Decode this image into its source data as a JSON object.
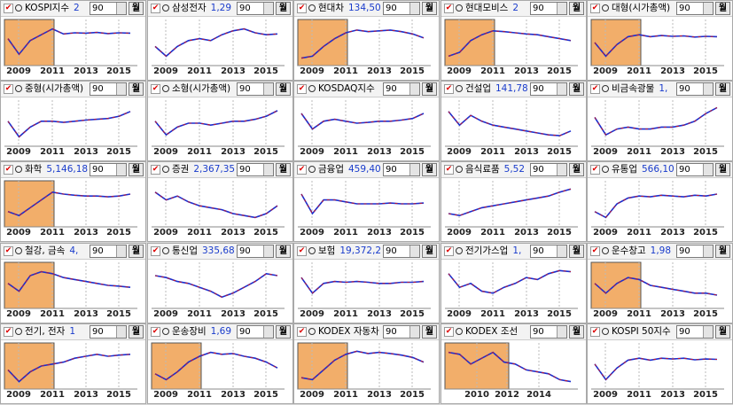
{
  "panels": [
    {
      "name": "KOSPI지수",
      "value": "2",
      "period": "90",
      "button": "월",
      "x_labels": [
        "2009",
        "2011",
        "2013",
        "2015"
      ],
      "highlight": true,
      "values": [
        60,
        20,
        55,
        70,
        85,
        72,
        75,
        74,
        76,
        73,
        75,
        74
      ]
    },
    {
      "name": "삼성전자",
      "value": "1,29",
      "period": "90",
      "button": "월",
      "x_labels": [
        "2009",
        "2011",
        "2013",
        "2015"
      ],
      "highlight": false,
      "values": [
        40,
        15,
        40,
        55,
        60,
        55,
        70,
        80,
        85,
        75,
        70,
        72
      ]
    },
    {
      "name": "현대차",
      "value": "134,50",
      "period": "90",
      "button": "월",
      "x_labels": [
        "2009",
        "2011",
        "2013",
        "2015"
      ],
      "highlight": true,
      "values": [
        10,
        15,
        40,
        60,
        75,
        82,
        78,
        80,
        82,
        78,
        72,
        62
      ]
    },
    {
      "name": "현대모비스",
      "value": "2",
      "period": "90",
      "button": "월",
      "x_labels": [
        "2009",
        "2011",
        "2013",
        "2015"
      ],
      "highlight": true,
      "values": [
        15,
        25,
        55,
        70,
        80,
        78,
        75,
        72,
        70,
        65,
        60,
        55
      ]
    },
    {
      "name": "대형(시가총액)",
      "period": "90",
      "button": "월",
      "x_labels": [
        "2009",
        "2011",
        "2013",
        "2015"
      ],
      "highlight": true,
      "values": [
        50,
        15,
        45,
        65,
        70,
        65,
        68,
        66,
        67,
        64,
        66,
        65
      ]
    },
    {
      "name": "중형(시가총액)",
      "period": "90",
      "button": "월",
      "x_labels": [
        "2009",
        "2011",
        "2013",
        "2015"
      ],
      "highlight": false,
      "values": [
        55,
        15,
        40,
        55,
        55,
        52,
        55,
        58,
        60,
        62,
        68,
        80
      ]
    },
    {
      "name": "소형(시가총액)",
      "period": "90",
      "button": "월",
      "x_labels": [
        "2009",
        "2011",
        "2013",
        "2015"
      ],
      "highlight": false,
      "values": [
        55,
        20,
        40,
        50,
        50,
        45,
        50,
        55,
        55,
        60,
        68,
        82
      ]
    },
    {
      "name": "KOSDAQ지수",
      "period": "90",
      "button": "월",
      "x_labels": [
        "2009",
        "2011",
        "2013",
        "2015"
      ],
      "highlight": false,
      "values": [
        75,
        35,
        55,
        60,
        55,
        50,
        52,
        55,
        55,
        58,
        62,
        75
      ]
    },
    {
      "name": "건설업",
      "value": "141,78",
      "period": "90",
      "button": "월",
      "x_labels": [
        "2009",
        "2011",
        "2013",
        "2015"
      ],
      "highlight": false,
      "values": [
        80,
        45,
        70,
        55,
        45,
        40,
        35,
        30,
        25,
        20,
        18,
        30
      ]
    },
    {
      "name": "비금속광물",
      "value": "1,",
      "period": "90",
      "button": "월",
      "x_labels": [
        "2009",
        "2011",
        "2013",
        "2015"
      ],
      "highlight": false,
      "values": [
        65,
        20,
        35,
        40,
        35,
        35,
        40,
        40,
        45,
        55,
        75,
        90
      ]
    },
    {
      "name": "화학",
      "value": "5,146,18",
      "period": "90",
      "button": "월",
      "x_labels": [
        "2009",
        "2011",
        "2013",
        "2015"
      ],
      "highlight": true,
      "values": [
        30,
        20,
        40,
        60,
        80,
        75,
        72,
        70,
        70,
        68,
        70,
        75
      ]
    },
    {
      "name": "증권",
      "value": "2,367,35",
      "period": "90",
      "button": "월",
      "x_labels": [
        "2009",
        "2011",
        "2013",
        "2015"
      ],
      "highlight": false,
      "values": [
        80,
        60,
        70,
        55,
        45,
        40,
        35,
        25,
        20,
        15,
        25,
        45
      ]
    },
    {
      "name": "금융업",
      "value": "459,40",
      "period": "90",
      "button": "월",
      "x_labels": [
        "2009",
        "2011",
        "2013",
        "2015"
      ],
      "highlight": false,
      "values": [
        75,
        25,
        60,
        60,
        55,
        50,
        50,
        50,
        52,
        50,
        50,
        52
      ]
    },
    {
      "name": "음식료품",
      "value": "5,52",
      "period": "90",
      "button": "월",
      "x_labels": [
        "2009",
        "2011",
        "2013",
        "2015"
      ],
      "highlight": false,
      "values": [
        25,
        20,
        30,
        40,
        45,
        50,
        55,
        60,
        65,
        70,
        80,
        88
      ]
    },
    {
      "name": "유통업",
      "value": "566,10",
      "period": "90",
      "button": "월",
      "x_labels": [
        "2009",
        "2011",
        "2013",
        "2015"
      ],
      "highlight": false,
      "values": [
        30,
        15,
        50,
        65,
        70,
        68,
        72,
        70,
        68,
        72,
        70,
        75
      ]
    },
    {
      "name": "철강, 금속",
      "value": "4,",
      "period": "90",
      "button": "월",
      "x_labels": [
        "2009",
        "2011",
        "2013",
        "2015"
      ],
      "highlight": true,
      "values": [
        55,
        35,
        75,
        85,
        80,
        70,
        65,
        60,
        55,
        50,
        48,
        45
      ]
    },
    {
      "name": "통신업",
      "value": "335,68",
      "period": "90",
      "button": "월",
      "x_labels": [
        "2009",
        "2011",
        "2013",
        "2015"
      ],
      "highlight": false,
      "values": [
        75,
        70,
        60,
        55,
        45,
        35,
        20,
        30,
        45,
        60,
        80,
        75
      ]
    },
    {
      "name": "보험",
      "value": "19,372,2",
      "period": "90",
      "button": "월",
      "x_labels": [
        "2009",
        "2011",
        "2013",
        "2015"
      ],
      "highlight": false,
      "values": [
        70,
        30,
        55,
        60,
        58,
        60,
        58,
        55,
        55,
        58,
        58,
        60
      ]
    },
    {
      "name": "전기가스업",
      "value": "1,",
      "period": "90",
      "button": "월",
      "x_labels": [
        "2009",
        "2011",
        "2013",
        "2015"
      ],
      "highlight": false,
      "values": [
        80,
        45,
        55,
        35,
        30,
        45,
        55,
        70,
        65,
        80,
        88,
        85
      ]
    },
    {
      "name": "운수창고",
      "value": "1,98",
      "period": "90",
      "button": "월",
      "x_labels": [
        "2009",
        "2011",
        "2013",
        "2015"
      ],
      "highlight": true,
      "values": [
        55,
        30,
        55,
        70,
        65,
        50,
        45,
        40,
        35,
        30,
        30,
        25
      ]
    },
    {
      "name": "전기, 전자",
      "value": "1",
      "period": "90",
      "button": "월",
      "x_labels": [
        "2009",
        "2011",
        "2013",
        "2015"
      ],
      "highlight": true,
      "values": [
        40,
        10,
        35,
        50,
        55,
        60,
        70,
        75,
        80,
        75,
        78,
        80
      ]
    },
    {
      "name": "운송장비",
      "value": "1,69",
      "period": "90",
      "button": "월",
      "x_labels": [
        "2009",
        "2011",
        "2013",
        "2015"
      ],
      "highlight": true,
      "values": [
        30,
        15,
        35,
        60,
        75,
        85,
        80,
        82,
        75,
        70,
        60,
        45
      ]
    },
    {
      "name": "KODEX 자동차",
      "period": "90",
      "button": "월",
      "x_labels": [
        "2009",
        "2011",
        "2013",
        "2015"
      ],
      "highlight": true,
      "values": [
        20,
        15,
        40,
        65,
        80,
        88,
        82,
        85,
        82,
        78,
        72,
        60
      ]
    },
    {
      "name": "KODEX 조선",
      "period": "90",
      "button": "월",
      "x_labels": [
        "2010",
        "2012",
        "2014"
      ],
      "highlight": true,
      "values": [
        85,
        80,
        55,
        70,
        85,
        60,
        55,
        40,
        35,
        30,
        15,
        10
      ]
    },
    {
      "name": "KOSPI 50지수",
      "period": "90",
      "button": "월",
      "x_labels": [
        "2009",
        "2011",
        "2013",
        "2015"
      ],
      "highlight": false,
      "values": [
        55,
        15,
        45,
        65,
        70,
        65,
        70,
        68,
        70,
        66,
        68,
        67
      ]
    }
  ]
}
